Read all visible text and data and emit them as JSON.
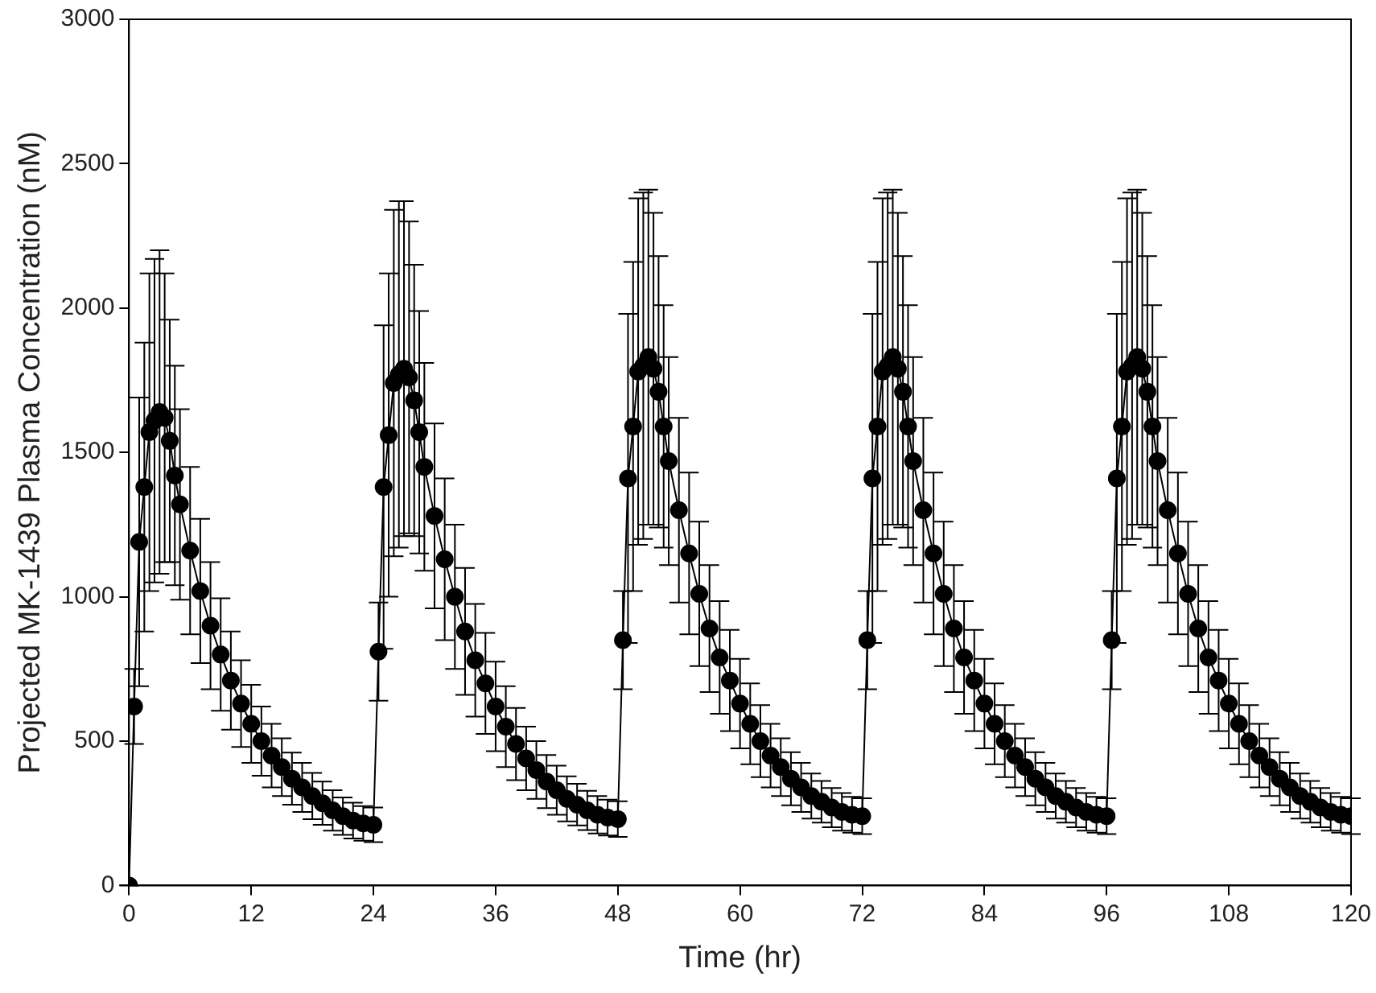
{
  "chart_data": {
    "type": "line",
    "xlabel": "Time (hr)",
    "ylabel": "Projected MK-1439 Plasma Concentration (nM)",
    "xlim": [
      0,
      120
    ],
    "xticks": [
      0,
      12,
      24,
      36,
      48,
      60,
      72,
      84,
      96,
      108,
      120
    ],
    "ylim": [
      0,
      3000
    ],
    "yticks": [
      0,
      500,
      1000,
      1500,
      2000,
      2500,
      3000
    ],
    "grid": false,
    "legend": false,
    "marker": "circle",
    "line_style": "solid",
    "series": [
      {
        "color": "#000000",
        "x": [
          0,
          0.5,
          1,
          1.5,
          2,
          2.5,
          3,
          3.5,
          4,
          4.5,
          5,
          6,
          7,
          8,
          9,
          10,
          11,
          12,
          13,
          14,
          15,
          16,
          17,
          18,
          19,
          20,
          21,
          22,
          23,
          24,
          24.5,
          25,
          25.5,
          26,
          26.5,
          27,
          27.5,
          28,
          28.5,
          29,
          30,
          31,
          32,
          33,
          34,
          35,
          36,
          37,
          38,
          39,
          40,
          41,
          42,
          43,
          44,
          45,
          46,
          47,
          48,
          48.5,
          49,
          49.5,
          50,
          50.5,
          51,
          51.5,
          52,
          52.5,
          53,
          54,
          55,
          56,
          57,
          58,
          59,
          60,
          61,
          62,
          63,
          64,
          65,
          66,
          67,
          68,
          69,
          70,
          71,
          72,
          72.5,
          73,
          73.5,
          74,
          74.5,
          75,
          75.5,
          76,
          76.5,
          77,
          78,
          79,
          80,
          81,
          82,
          83,
          84,
          85,
          86,
          87,
          88,
          89,
          90,
          91,
          92,
          93,
          94,
          95,
          96,
          96.5,
          97,
          97.5,
          98,
          98.5,
          99,
          99.5,
          100,
          100.5,
          101,
          102,
          103,
          104,
          105,
          106,
          107,
          108,
          109,
          110,
          111,
          112,
          113,
          114,
          115,
          116,
          117,
          118,
          119,
          120
        ],
        "values": [
          0,
          620,
          1190,
          1380,
          1570,
          1610,
          1640,
          1620,
          1540,
          1420,
          1320,
          1160,
          1020,
          900,
          800,
          710,
          630,
          560,
          500,
          450,
          410,
          370,
          340,
          310,
          285,
          260,
          240,
          225,
          215,
          210,
          810,
          1380,
          1560,
          1740,
          1770,
          1790,
          1760,
          1680,
          1570,
          1450,
          1280,
          1130,
          1000,
          880,
          780,
          700,
          620,
          550,
          490,
          440,
          400,
          360,
          330,
          300,
          280,
          260,
          245,
          235,
          230,
          850,
          1410,
          1590,
          1780,
          1800,
          1830,
          1790,
          1710,
          1590,
          1470,
          1300,
          1150,
          1010,
          890,
          790,
          710,
          630,
          560,
          500,
          450,
          410,
          370,
          340,
          310,
          290,
          270,
          255,
          245,
          240,
          850,
          1410,
          1590,
          1780,
          1800,
          1830,
          1790,
          1710,
          1590,
          1470,
          1300,
          1150,
          1010,
          890,
          790,
          710,
          630,
          560,
          500,
          450,
          410,
          370,
          340,
          310,
          290,
          270,
          255,
          245,
          240,
          850,
          1410,
          1590,
          1780,
          1800,
          1830,
          1790,
          1710,
          1590,
          1470,
          1300,
          1150,
          1010,
          890,
          790,
          710,
          630,
          560,
          500,
          450,
          410,
          370,
          340,
          310,
          290,
          270,
          255,
          245,
          240
        ],
        "errors": [
          0,
          130,
          500,
          500,
          550,
          560,
          560,
          500,
          420,
          380,
          330,
          290,
          250,
          220,
          195,
          170,
          150,
          135,
          120,
          110,
          100,
          90,
          85,
          80,
          75,
          70,
          65,
          62,
          60,
          60,
          170,
          560,
          560,
          600,
          600,
          580,
          540,
          470,
          420,
          360,
          320,
          280,
          250,
          220,
          195,
          175,
          155,
          140,
          125,
          110,
          100,
          92,
          85,
          78,
          72,
          68,
          65,
          62,
          62,
          170,
          570,
          570,
          600,
          600,
          580,
          540,
          470,
          420,
          360,
          320,
          280,
          250,
          220,
          195,
          175,
          155,
          140,
          125,
          110,
          100,
          92,
          85,
          78,
          72,
          68,
          65,
          62,
          62,
          170,
          570,
          570,
          600,
          600,
          580,
          540,
          470,
          420,
          360,
          320,
          280,
          250,
          220,
          195,
          175,
          155,
          140,
          125,
          110,
          100,
          92,
          85,
          78,
          72,
          68,
          65,
          62,
          62,
          170,
          570,
          570,
          600,
          600,
          580,
          540,
          470,
          420,
          360,
          320,
          280,
          250,
          220,
          195,
          175,
          155,
          140,
          125,
          110,
          100,
          92,
          85,
          78,
          72,
          68,
          65,
          62,
          62
        ]
      }
    ]
  }
}
